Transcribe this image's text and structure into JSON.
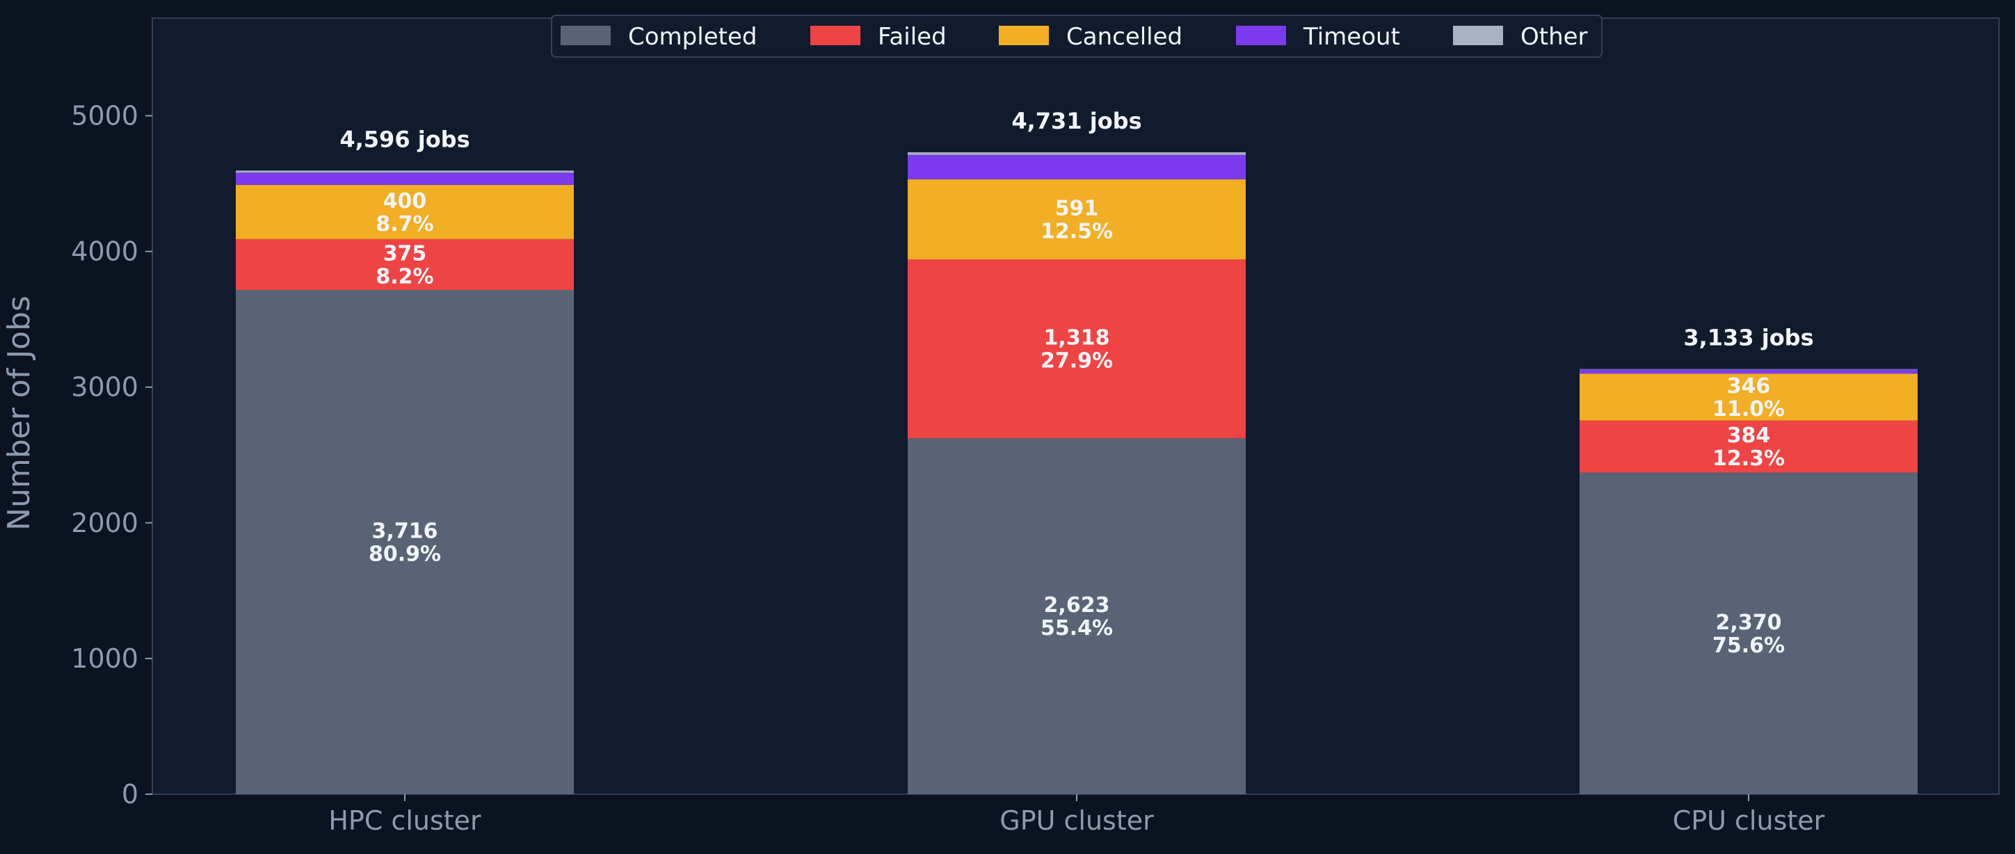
{
  "chart_data": {
    "type": "bar",
    "stacked": true,
    "categories": [
      "HPC cluster",
      "GPU cluster",
      "CPU cluster"
    ],
    "series": [
      {
        "name": "Completed",
        "color": "#586476",
        "values": [
          3716,
          2623,
          2370
        ],
        "labels": [
          "80.9%",
          "55.4%",
          "75.6%"
        ]
      },
      {
        "name": "Failed",
        "color": "#ef4444",
        "values": [
          375,
          1318,
          384
        ],
        "labels": [
          "8.2%",
          "27.9%",
          "12.3%"
        ]
      },
      {
        "name": "Cancelled",
        "color": "#f2ae24",
        "values": [
          400,
          591,
          346
        ],
        "labels": [
          "8.7%",
          "12.5%",
          "11.0%"
        ]
      },
      {
        "name": "Timeout",
        "color": "#7c3aed",
        "values": [
          90,
          180,
          30
        ],
        "labels": [
          "",
          "",
          ""
        ]
      },
      {
        "name": "Other",
        "color": "#a8b3c2",
        "values": [
          15,
          19,
          3
        ],
        "labels": [
          "",
          "",
          ""
        ]
      }
    ],
    "totals": [
      "4,596 jobs",
      "4,731 jobs",
      "3,133 jobs"
    ],
    "value_labels": [
      [
        "3,716",
        "2,623",
        "2,370"
      ],
      [
        "375",
        "1,318",
        "384"
      ],
      [
        "400",
        "591",
        "346"
      ],
      [
        "",
        "",
        ""
      ],
      [
        "",
        "",
        ""
      ]
    ],
    "ylabel": "Number of Jobs",
    "xlabel": "",
    "ylim": [
      0,
      5720
    ],
    "yticks": [
      0,
      1000,
      2000,
      3000,
      4000,
      5000
    ],
    "grid": false,
    "legend_position": "top-center"
  },
  "colors": {
    "page_background": "#0b1220",
    "plot_background": "#101b2e",
    "axis": "#334155",
    "tick_text": "#8c9bb0",
    "label_text": "#f1f5f9"
  }
}
